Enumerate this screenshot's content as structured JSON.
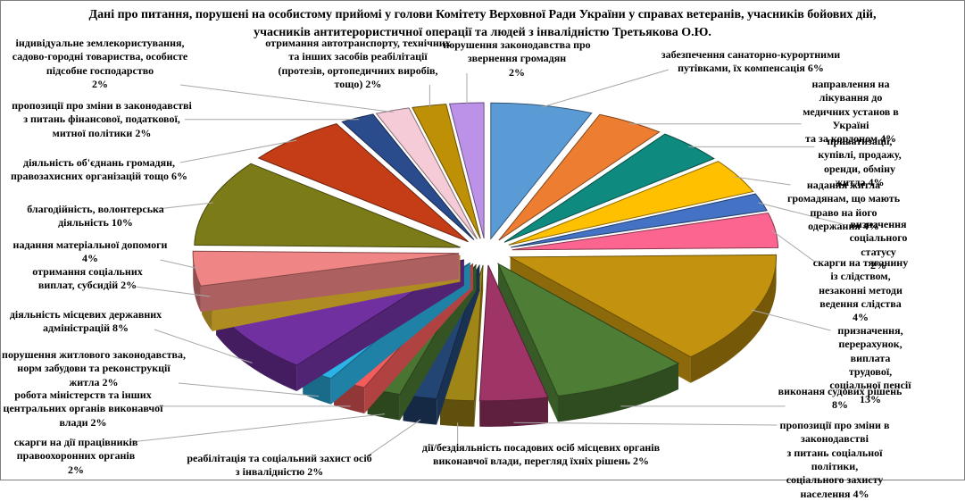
{
  "title": "Дані про питання, порушені  на особистому прийомі у голови Комітету Верховної Ради України у справах  ветеранів, учасників бойових дій, учасників антитерористичної операції та людей з інвалідністю Третьякова О.Ю.",
  "colors": {
    "background": "#FFFFFF",
    "border": "#7F7F7F",
    "leader_line": "#A8A8A8",
    "text": "#000000"
  },
  "chart_data": {
    "type": "pie",
    "style": "3d-exploded",
    "unit": "%",
    "start_angle_deg": 0,
    "direction": "clockwise",
    "slices": [
      {
        "label": "забезпечення санаторно-курортними путівками, їх компенсація",
        "pct": 6,
        "color": "#5B9BD5",
        "display": "забезпечення санаторно-курортними\nпутівками, їх  компенсація  6%"
      },
      {
        "label": "направлення на лікування до медичних установ в Україні та за кордоном",
        "pct": 4,
        "color": "#ED7D31",
        "display": "направлення на лікування до\nмедичних установ в Україні\nта за кордоном 4%"
      },
      {
        "label": "приватизації, купівлі, продажу, оренди, обміну житла",
        "pct": 4,
        "color": "#0E8B7E",
        "display": "приватизації, купівлі, продажу,\nоренди, обміну житла 4%"
      },
      {
        "label": "надання житла громадянам, що мають право на його одержання",
        "pct": 4,
        "color": "#FFC000",
        "display": "надання житла громадянам, що мають\nправо на його одержання  4%"
      },
      {
        "label": "визначення соціального статусу",
        "pct": 2,
        "color": "#4472C4",
        "display": "визначення соціального статусу\n2%"
      },
      {
        "label": "скарги на тяганину із слідством, незаконні методи ведення слідства",
        "pct": 4,
        "color": "#FB6590",
        "display": "скарги на тяганину із  слідством,\nнезаконні методи ведення слідства\n4%"
      },
      {
        "label": "призначення, перерахунок, виплата трудової, соціальної пенсії",
        "pct": 13,
        "color": "#C3920E",
        "display": "призначення, перерахунок, виплата\nтрудової, соціальної пенсії\n13%"
      },
      {
        "label": "виконаня судових рішень",
        "pct": 8,
        "color": "#4E7D35",
        "display": "виконаня судових рішень\n8%"
      },
      {
        "label": "пропозиції про зміни в законодавстві з питань соціальної політики, соціального захисту населення",
        "pct": 4,
        "color": "#9E3566",
        "display": "пропозиції про зміни в законодавстві\nз питань соціальної політики,\nсоціального захисту населення 4%"
      },
      {
        "label": "дії/бездіяльність посадових осіб місцевих органів виконавчої влади, перегляд їхніх рішень",
        "pct": 2,
        "color": "#A08617",
        "display": "дії/бездіяльність  посадових осіб місцевих органів\nвиконавчої влади, перегляд їхніх  рішень 2%"
      },
      {
        "label": "реабілітація та соціальний захист осіб з інвалідністю",
        "pct": 2,
        "color": "#234573",
        "display": "реабілітація та соціальний захист  осіб\nз інвалідністю 2%"
      },
      {
        "label": "скарги на дії працівників правоохоронних органів",
        "pct": 2,
        "color": "#4A7431",
        "display": "скарги на дії  працівників\nправоохоронних органів\n2%"
      },
      {
        "label": "робота міністерств та інших центральних органів виконавчої влади",
        "pct": 2,
        "color": "#F45B5B",
        "display": "робота міністерств та інших\nцентральних органів виконавчої\nвлади 2%"
      },
      {
        "label": "порушення житлового законодавства, норм забудови та реконструкції житла",
        "pct": 2,
        "color": "#2BB3E6",
        "display": "порушення житлового законодавства,\nнорм забудови та реконструкції\nжитла 2%"
      },
      {
        "label": "діяльність місцевих державних адміністрацій",
        "pct": 8,
        "color": "#7030A0",
        "display": "діяльність  місцевих державних\nадміністрацій 8%"
      },
      {
        "label": "отримання соціальних виплат, субсидій",
        "pct": 2,
        "color": "#F2C22E",
        "display": "отримання соціальних\nвиплат, субсидій 2%"
      },
      {
        "label": "надання матеріальної допомоги",
        "pct": 4,
        "color": "#F08585",
        "display": "надання матеріальної допомоги\n4%"
      },
      {
        "label": "благодійність, волонтерська діяльність",
        "pct": 10,
        "color": "#7B7C17",
        "display": "благодійність, волонтерська\nдіяльність  10%"
      },
      {
        "label": "діяльність об'єднань громадян, правозахисних організацій тощо",
        "pct": 6,
        "color": "#C53D16",
        "display": "діяльність   об'єднань громадян,\nправозахисних організацій тощо 6%"
      },
      {
        "label": "пропозиції про зміни в законодавстві з питань фінансової, податкової, митної політики",
        "pct": 2,
        "color": "#2B4C8C",
        "display": "пропозиції про зміни в законодавстві\nз питань фінансової, податкової,\nмитної політики 2%"
      },
      {
        "label": "індивідуальне землекористування, садово-городні товариства, особисте підсобне господарство",
        "pct": 2,
        "color": "#F6CBD8",
        "display": "індивідуальне землекористування,\nсадово-городні товариства, особисте\nпідсобне господарство\n2%"
      },
      {
        "label": "отримання автотранспорту, технічних та інших засобів реабілітації (протезів, ортопедичних виробів, тощо)",
        "pct": 2,
        "color": "#BE9005",
        "display": "отримання автотранспорту, технічних\nта інших  засобів реабілітації\n(протезів, ортопедичних виробів,\nтощо) 2%"
      },
      {
        "label": "порушення законодавства про звернення громадян",
        "pct": 2,
        "color": "#BC92E8",
        "display": "порушення законодавства про\nзвернення громадян\n2%"
      }
    ]
  }
}
